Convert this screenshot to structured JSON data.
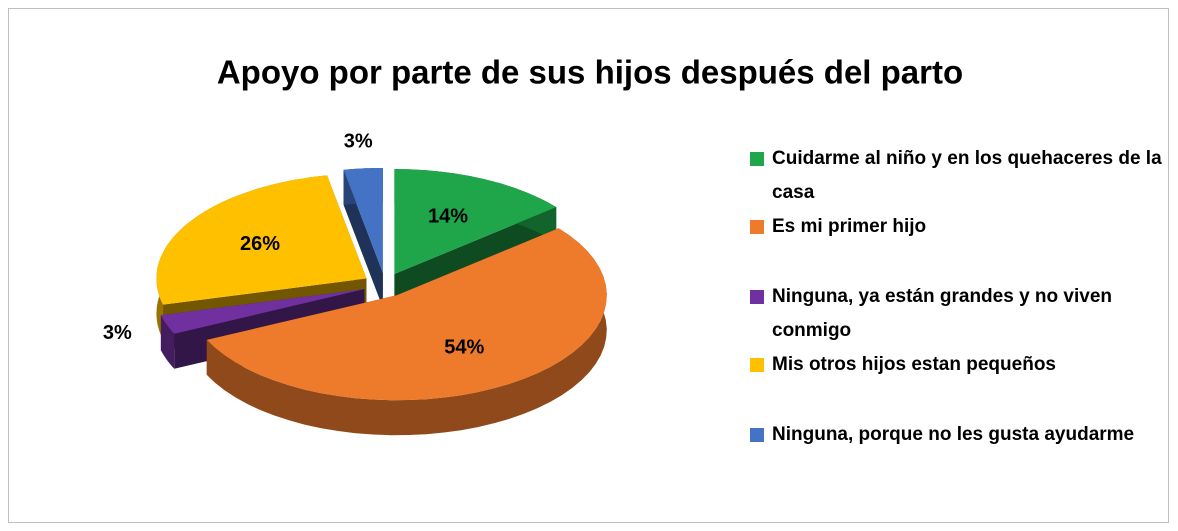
{
  "chart_data": {
    "type": "pie",
    "title": "Apoyo por parte de sus hijos después del parto",
    "categories": [
      "Cuidarme al niño y en los quehaceres de la casa",
      "Es mi primer hijo",
      "Ninguna, ya están grandes y no viven conmigo",
      "Mis otros hijos estan pequeños",
      "Ninguna, porque no les gusta ayudarme"
    ],
    "values": [
      14,
      54,
      3,
      26,
      3
    ],
    "value_labels": [
      "14%",
      "54%",
      "3%",
      "26%",
      "3%"
    ],
    "colors": [
      "#1fa64a",
      "#ee7a2c",
      "#7030a0",
      "#ffc000",
      "#4472c4"
    ],
    "legend": "right"
  }
}
